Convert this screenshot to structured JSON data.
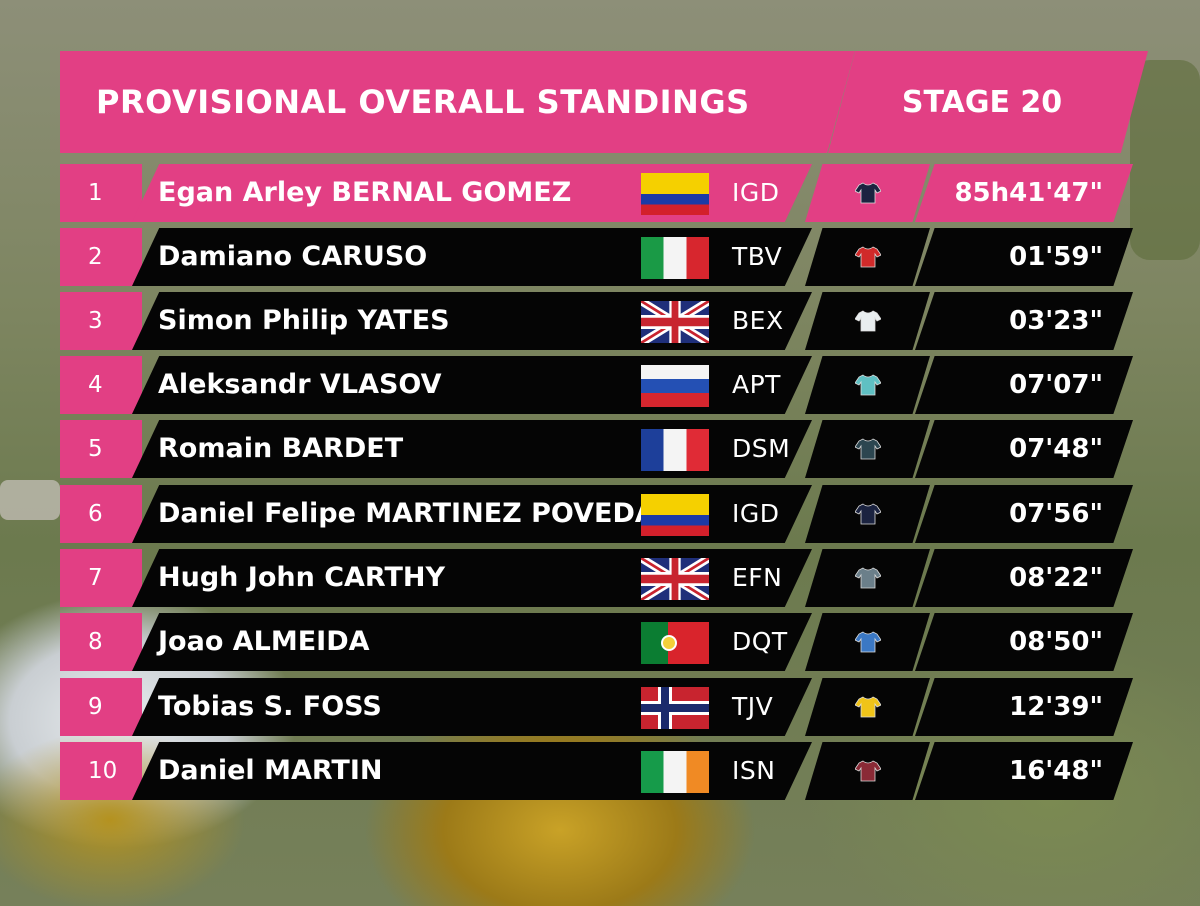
{
  "header": {
    "title": "PROVISIONAL OVERALL STANDINGS",
    "stage": "STAGE 20"
  },
  "colors": {
    "accent": "#e23f84",
    "bar": "#050505",
    "text": "#ffffff"
  },
  "standings": [
    {
      "rank": "1",
      "name": "Egan Arley BERNAL GOMEZ",
      "flag": "colombia-flag",
      "team": "IGD",
      "jersey": "dark-navy-jersey",
      "jersey_color": "#1b2340",
      "time": "85h41'47\""
    },
    {
      "rank": "2",
      "name": "Damiano CARUSO",
      "flag": "italy-flag",
      "team": "TBV",
      "jersey": "red-jersey",
      "jersey_color": "#d02a2a",
      "time": "01'59\""
    },
    {
      "rank": "3",
      "name": "Simon Philip YATES",
      "flag": "united-kingdom-flag",
      "team": "BEX",
      "jersey": "white-jersey",
      "jersey_color": "#e9eef0",
      "time": "03'23\""
    },
    {
      "rank": "4",
      "name": "Aleksandr VLASOV",
      "flag": "russia-flag",
      "team": "APT",
      "jersey": "turquoise-jersey",
      "jersey_color": "#5fc0c3",
      "time": "07'07\""
    },
    {
      "rank": "5",
      "name": "Romain BARDET",
      "flag": "france-flag",
      "team": "DSM",
      "jersey": "black-teal-jersey",
      "jersey_color": "#2c4650",
      "time": "07'48\""
    },
    {
      "rank": "6",
      "name": "Daniel Felipe MARTINEZ POVEDA",
      "flag": "colombia-flag",
      "team": "IGD",
      "jersey": "dark-navy-jersey",
      "jersey_color": "#1b2340",
      "time": "07'56\""
    },
    {
      "rank": "7",
      "name": "Hugh John CARTHY",
      "flag": "united-kingdom-flag",
      "team": "EFN",
      "jersey": "patterned-jersey",
      "jersey_color": "#6b7f8a",
      "time": "08'22\""
    },
    {
      "rank": "8",
      "name": "Joao ALMEIDA",
      "flag": "portugal-flag",
      "team": "DQT",
      "jersey": "blue-jersey",
      "jersey_color": "#3b78c4",
      "time": "08'50\""
    },
    {
      "rank": "9",
      "name": "Tobias S. FOSS",
      "flag": "norway-flag",
      "team": "TJV",
      "jersey": "yellow-jersey",
      "jersey_color": "#f0c419",
      "time": "12'39\""
    },
    {
      "rank": "10",
      "name": "Daniel MARTIN",
      "flag": "ireland-flag",
      "team": "ISN",
      "jersey": "maroon-jersey",
      "jersey_color": "#8a2a36",
      "time": "16'48\""
    }
  ]
}
